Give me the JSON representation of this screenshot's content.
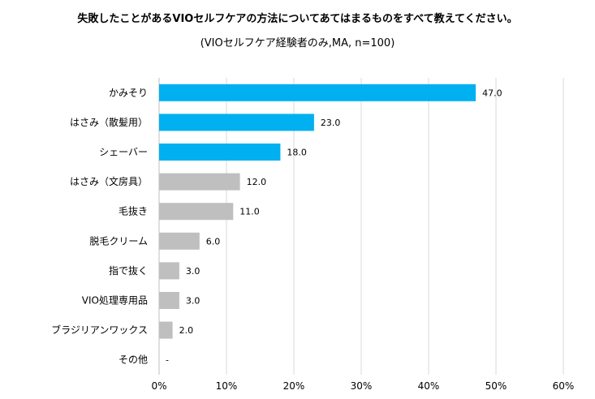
{
  "chart_data": {
    "type": "bar",
    "orientation": "horizontal",
    "title": "失敗したことがあるVIOセルフケアの方法についてあてはまるものをすべて教えてください。",
    "subtitle": "(VIOセルフケア経験者のみ,MA, n=100)",
    "categories": [
      "かみそり",
      "はさみ（散髪用）",
      "シェーバー",
      "はさみ（文房具）",
      "毛抜き",
      "脱毛クリーム",
      "指で抜く",
      "VIO処理専用品",
      "ブラジリアンワックス",
      "その他"
    ],
    "values": [
      47.0,
      23.0,
      18.0,
      12.0,
      11.0,
      6.0,
      3.0,
      3.0,
      2.0,
      null
    ],
    "value_labels": [
      "47.0",
      "23.0",
      "18.0",
      "12.0",
      "11.0",
      "6.0",
      "3.0",
      "3.0",
      "2.0",
      "-"
    ],
    "bar_colors": [
      "#00b0f0",
      "#00b0f0",
      "#00b0f0",
      "#bfbfbf",
      "#bfbfbf",
      "#bfbfbf",
      "#bfbfbf",
      "#bfbfbf",
      "#bfbfbf",
      "#bfbfbf"
    ],
    "xlim": [
      0,
      60
    ],
    "xticks": [
      0,
      10,
      20,
      30,
      40,
      50,
      60
    ],
    "xtick_labels": [
      "0%",
      "10%",
      "20%",
      "30%",
      "40%",
      "50%",
      "60%"
    ],
    "xlabel": "",
    "ylabel": "",
    "grid": true,
    "legend": "none",
    "colors": {
      "highlight": "#00b0f0",
      "other": "#bfbfbf",
      "grid": "#d9d9d9",
      "axis": "#bfbfbf"
    }
  }
}
